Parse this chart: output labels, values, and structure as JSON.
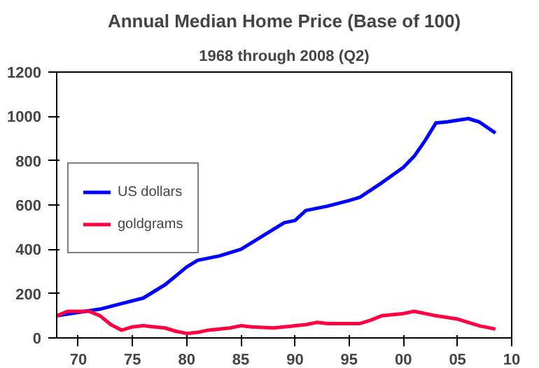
{
  "chart_data": {
    "type": "line",
    "title": "Annual Median Home Price (Base of 100)",
    "subtitle": "1968 through 2008 (Q2)",
    "xlim": [
      1968,
      2010
    ],
    "xticks": [
      {
        "value": 1970,
        "label": "70"
      },
      {
        "value": 1975,
        "label": "75"
      },
      {
        "value": 1980,
        "label": "80"
      },
      {
        "value": 1985,
        "label": "85"
      },
      {
        "value": 1990,
        "label": "90"
      },
      {
        "value": 1995,
        "label": "95"
      },
      {
        "value": 2000,
        "label": "00"
      },
      {
        "value": 2005,
        "label": "05"
      },
      {
        "value": 2010,
        "label": "10"
      }
    ],
    "ylim": [
      0,
      1200
    ],
    "yticks": [
      0,
      200,
      400,
      600,
      800,
      1000,
      1200
    ],
    "grid": false,
    "legend": "left",
    "marker": "none",
    "line_style": "solid",
    "series": [
      {
        "name": "US dollars",
        "color": "#0000ff",
        "x": [
          1968,
          1970,
          1972,
          1974,
          1976,
          1978,
          1980,
          1981,
          1983,
          1985,
          1987,
          1989,
          1990,
          1991,
          1993,
          1995,
          1996,
          1998,
          2000,
          2001,
          2002,
          2003,
          2004,
          2006,
          2007,
          2008.5
        ],
        "values": [
          100,
          115,
          130,
          155,
          180,
          240,
          320,
          350,
          370,
          400,
          460,
          520,
          530,
          575,
          595,
          620,
          635,
          700,
          770,
          820,
          890,
          970,
          975,
          990,
          975,
          925
        ]
      },
      {
        "name": "goldgrams",
        "color": "#ff0040",
        "x": [
          1968,
          1969,
          1971,
          1972,
          1973,
          1974,
          1975,
          1976,
          1977,
          1978,
          1979,
          1980,
          1981,
          1982,
          1984,
          1985,
          1986,
          1988,
          1989,
          1991,
          1992,
          1993,
          1996,
          1997,
          1998,
          2000,
          2001,
          2002,
          2003,
          2005,
          2007,
          2008.5
        ],
        "values": [
          100,
          120,
          120,
          100,
          60,
          35,
          50,
          55,
          50,
          45,
          30,
          20,
          25,
          35,
          45,
          55,
          50,
          45,
          50,
          60,
          70,
          65,
          65,
          80,
          100,
          110,
          120,
          110,
          100,
          85,
          55,
          40
        ]
      }
    ]
  }
}
